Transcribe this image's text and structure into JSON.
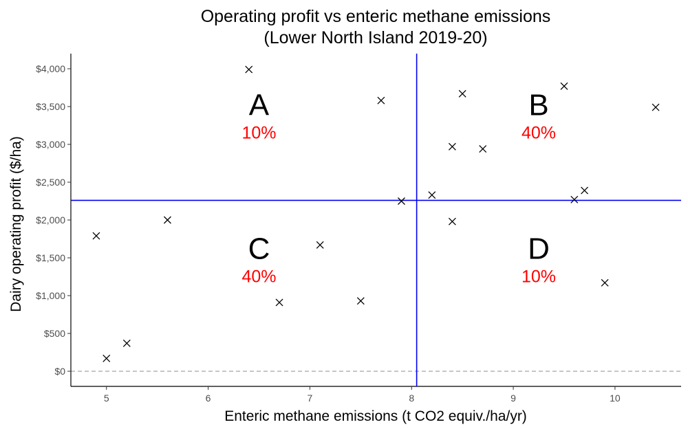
{
  "chart_data": {
    "type": "scatter",
    "title": [
      "Operating profit vs enteric methane emissions",
      "(Lower North Island 2019-20)"
    ],
    "xlabel": "Enteric methane emissions (t CO2 equiv./ha/yr)",
    "ylabel": "Dairy operating profit ($/ha)",
    "xlim": [
      4.65,
      10.65
    ],
    "ylim": [
      -200,
      4200
    ],
    "x_ticks": [
      5,
      6,
      7,
      8,
      9,
      10
    ],
    "y_ticks": [
      0,
      500,
      1000,
      1500,
      2000,
      2500,
      3000,
      3500,
      4000
    ],
    "y_tick_labels": [
      "$0",
      "$500",
      "$1,000",
      "$1,500",
      "$2,000",
      "$2,500",
      "$3,000",
      "$3,500",
      "$4,000"
    ],
    "grid": false,
    "marker": "x",
    "points": [
      {
        "x": 4.9,
        "y": 1790
      },
      {
        "x": 5.0,
        "y": 170
      },
      {
        "x": 5.2,
        "y": 370
      },
      {
        "x": 5.6,
        "y": 2000
      },
      {
        "x": 6.4,
        "y": 3990
      },
      {
        "x": 6.7,
        "y": 910
      },
      {
        "x": 7.1,
        "y": 1670
      },
      {
        "x": 7.5,
        "y": 930
      },
      {
        "x": 7.7,
        "y": 3580
      },
      {
        "x": 7.9,
        "y": 2250
      },
      {
        "x": 8.2,
        "y": 2330
      },
      {
        "x": 8.4,
        "y": 2970
      },
      {
        "x": 8.4,
        "y": 1980
      },
      {
        "x": 8.5,
        "y": 3670
      },
      {
        "x": 8.7,
        "y": 2940
      },
      {
        "x": 9.5,
        "y": 3770
      },
      {
        "x": 9.6,
        "y": 2270
      },
      {
        "x": 9.7,
        "y": 2390
      },
      {
        "x": 9.9,
        "y": 1170
      },
      {
        "x": 10.4,
        "y": 3490
      }
    ],
    "reference_lines": {
      "vertical_x": 8.05,
      "horizontal_y": 2260,
      "zero_line_y": 0,
      "line_color": "#0000ee",
      "zero_line_color": "#b3b3b3"
    },
    "quadrants": [
      {
        "letter": "A",
        "percent": "10%",
        "x": 6.5,
        "y": 3270
      },
      {
        "letter": "B",
        "percent": "40%",
        "x": 9.25,
        "y": 3270
      },
      {
        "letter": "C",
        "percent": "40%",
        "x": 6.5,
        "y": 1370
      },
      {
        "letter": "D",
        "percent": "10%",
        "x": 9.25,
        "y": 1370
      }
    ]
  }
}
